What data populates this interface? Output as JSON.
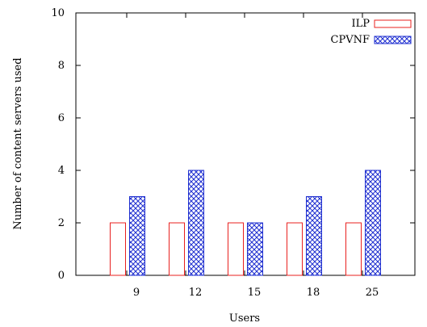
{
  "chart_data": {
    "type": "bar",
    "xlabel": "Users",
    "ylabel": "Number of content servers used",
    "categories": [
      "9",
      "12",
      "15",
      "18",
      "25"
    ],
    "ylim": [
      0,
      10
    ],
    "yticks": [
      "0",
      "2",
      "4",
      "6",
      "8",
      "10"
    ],
    "grid": false,
    "legend_position": "top-right",
    "series": [
      {
        "name": "ILP",
        "values": [
          2,
          2,
          2,
          2,
          2
        ],
        "color": "#e8201f",
        "fill": "none"
      },
      {
        "name": "CPVNF",
        "values": [
          3,
          4,
          2,
          3,
          4
        ],
        "color": "#1f2fd0",
        "fill": "crosshatch"
      }
    ]
  }
}
